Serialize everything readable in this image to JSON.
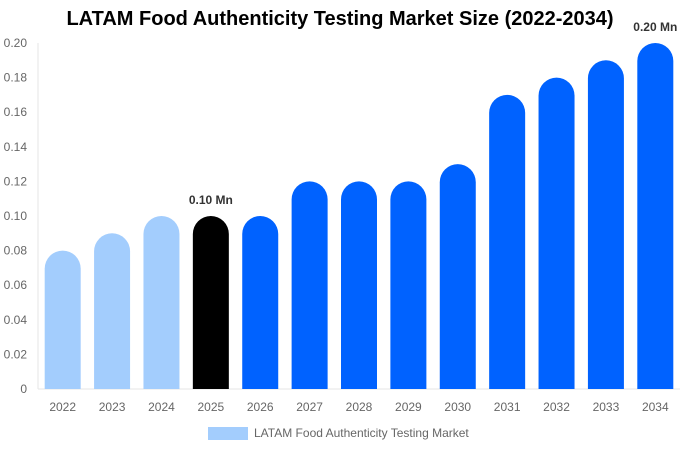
{
  "chart_data": {
    "type": "bar",
    "title": "LATAM Food Authenticity Testing Market  Size (2022-2034)",
    "categories": [
      "2022",
      "2023",
      "2024",
      "2025",
      "2026",
      "2027",
      "2028",
      "2029",
      "2030",
      "2031",
      "2032",
      "2033",
      "2034"
    ],
    "series": [
      {
        "name": "LATAM Food Authenticity Testing Market",
        "values": [
          0.08,
          0.09,
          0.1,
          0.1,
          0.1,
          0.12,
          0.12,
          0.12,
          0.13,
          0.17,
          0.18,
          0.19,
          0.2
        ]
      }
    ],
    "bar_colors": [
      "#a3cdfd",
      "#a3cdfd",
      "#a3cdfd",
      "#000000",
      "#0062ff",
      "#0062ff",
      "#0062ff",
      "#0062ff",
      "#0062ff",
      "#0062ff",
      "#0062ff",
      "#0062ff",
      "#0062ff"
    ],
    "data_labels": [
      {
        "category": "2025",
        "text": "0.10 Mn"
      },
      {
        "category": "2034",
        "text": "0.20 Mn"
      }
    ],
    "yticks": [
      "0",
      "0.02",
      "0.04",
      "0.06",
      "0.08",
      "0.10",
      "0.12",
      "0.14",
      "0.16",
      "0.18",
      "0.20"
    ],
    "ylim": [
      0,
      0.2
    ],
    "xlabel": "",
    "ylabel": "",
    "grid": false,
    "legend_position": "bottom",
    "legend_color": "#a3cdfd"
  }
}
